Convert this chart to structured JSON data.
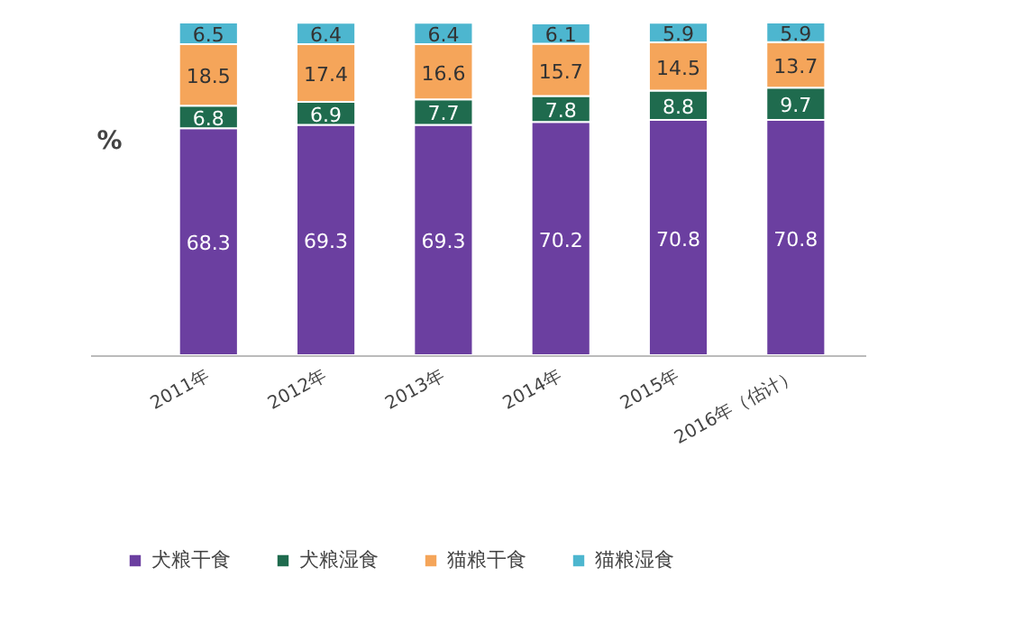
{
  "chart_data": {
    "type": "bar",
    "stacked": true,
    "ylabel": "%",
    "data_labels": true,
    "legend": "bottom",
    "grid": false,
    "categories": [
      "2011年",
      "2012年",
      "2013年",
      "2014年",
      "2015年",
      "2016年（估计）"
    ],
    "series": [
      {
        "name": "犬粮干食",
        "color": "#6b3fa0",
        "values": [
          68.3,
          69.3,
          69.3,
          70.2,
          70.8,
          70.8
        ]
      },
      {
        "name": "犬粮湿食",
        "color": "#1f6b4e",
        "values": [
          6.8,
          6.9,
          7.7,
          7.8,
          8.8,
          9.7
        ]
      },
      {
        "name": "猫粮干食",
        "color": "#f5a55a",
        "values": [
          18.5,
          17.4,
          16.6,
          15.7,
          14.5,
          13.7
        ]
      },
      {
        "name": "猫粮湿食",
        "color": "#4db6cf",
        "values": [
          6.5,
          6.4,
          6.4,
          6.1,
          5.9,
          5.9
        ]
      }
    ]
  }
}
